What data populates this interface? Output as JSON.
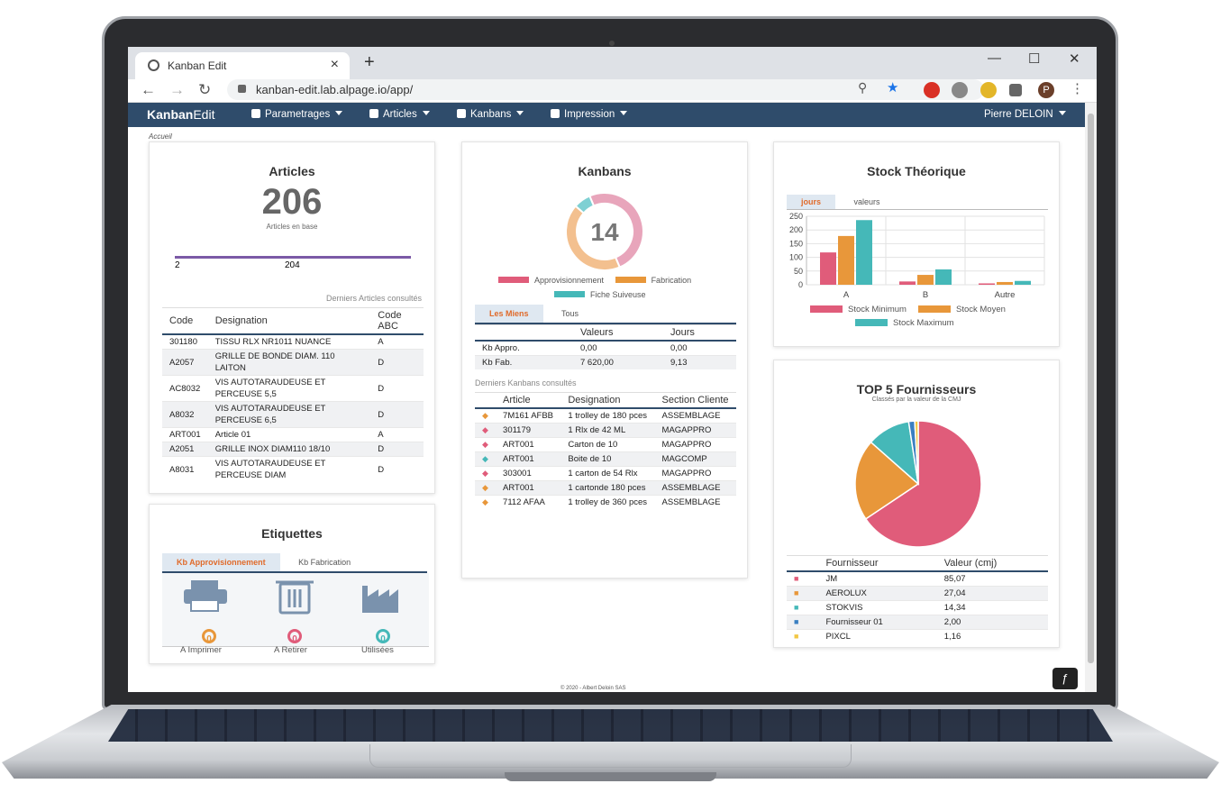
{
  "browser": {
    "tab_title": "Kanban Edit",
    "new_tab": "+",
    "url": "kanban-edit.lab.alpage.io/app/",
    "window_controls": [
      "—",
      "☐",
      "✕"
    ],
    "profile_initial": "P"
  },
  "appnav": {
    "brand_bold": "Kanban",
    "brand_light": "Edit",
    "menus": [
      "Parametrages",
      "Articles",
      "Kanbans",
      "Impression"
    ],
    "user": "Pierre DELOIN"
  },
  "breadcrumb": "Accueil",
  "articles": {
    "title": "Articles",
    "count": "206",
    "subtitle": "Articles en base",
    "progress_left": "2",
    "progress_right": "204",
    "recent_caption": "Derniers Articles consultés",
    "columns": [
      "Code",
      "Designation",
      "Code ABC"
    ],
    "rows": [
      [
        "301180",
        "TISSU RLX NR1011 NUANCE",
        "A"
      ],
      [
        "A2057",
        "GRILLE DE BONDE DIAM. 110 LAITON",
        "D"
      ],
      [
        "AC8032",
        "VIS AUTOTARAUDEUSE ET PERCEUSE 5,5",
        "D"
      ],
      [
        "A8032",
        "VIS AUTOTARAUDEUSE ET PERCEUSE 6,5",
        "D"
      ],
      [
        "ART001",
        "Article 01",
        "A"
      ],
      [
        "A2051",
        "GRILLE INOX DIAM110 18/10",
        "D"
      ],
      [
        "A8031",
        "VIS AUTOTARAUDEUSE ET PERCEUSE DIAM",
        "D"
      ]
    ]
  },
  "etiquettes": {
    "title": "Etiquettes",
    "tabs": [
      "Kb Approvisionnement",
      "Kb Fabrication"
    ],
    "items": [
      {
        "label": "A Imprimer",
        "count": "0",
        "color": "#e8973a",
        "icon": "printer-icon"
      },
      {
        "label": "A Retirer",
        "count": "0",
        "color": "#e05c7a",
        "icon": "trash-icon"
      },
      {
        "label": "Utilisées",
        "count": "0",
        "color": "#45b8b8",
        "icon": "factory-icon"
      }
    ]
  },
  "kanbans": {
    "title": "Kanbans",
    "center": "14",
    "legend": [
      "Approvisionnement",
      "Fabrication",
      "Fiche Suiveuse"
    ],
    "tabs": [
      "Les Miens",
      "Tous"
    ],
    "summary_columns": [
      "",
      "Valeurs",
      "Jours"
    ],
    "summary_rows": [
      [
        "Kb Appro.",
        "0,00",
        "0,00"
      ],
      [
        "Kb Fab.",
        "7 620,00",
        "9,13"
      ]
    ],
    "recent_caption": "Derniers Kanbans consultés",
    "columns": [
      "",
      "Article",
      "Designation",
      "Section Cliente"
    ],
    "rows": [
      {
        "color": "#e8973a",
        "cells": [
          "7M161 AFBB",
          "1 trolley de 180 pces",
          "ASSEMBLAGE"
        ]
      },
      {
        "color": "#e05c7a",
        "cells": [
          "301179",
          "1 Rlx de 42 ML",
          "MAGAPPRO"
        ]
      },
      {
        "color": "#e05c7a",
        "cells": [
          "ART001",
          "Carton de 10",
          "MAGAPPRO"
        ]
      },
      {
        "color": "#45b8b8",
        "cells": [
          "ART001",
          "Boite de 10",
          "MAGCOMP"
        ]
      },
      {
        "color": "#e05c7a",
        "cells": [
          "303001",
          "1 carton de 54 Rlx",
          "MAGAPPRO"
        ]
      },
      {
        "color": "#e8973a",
        "cells": [
          "ART001",
          "1 cartonde 180 pces",
          "ASSEMBLAGE"
        ]
      },
      {
        "color": "#e8973a",
        "cells": [
          "7112 AFAA",
          "1 trolley de 360 pces",
          "ASSEMBLAGE"
        ]
      }
    ]
  },
  "stock": {
    "title": "Stock Théorique",
    "tabs": [
      "jours",
      "valeurs"
    ]
  },
  "fournisseurs": {
    "title": "TOP 5 Fournisseurs",
    "subtitle": "Classés par la valeur de la CMJ",
    "columns": [
      "",
      "Fournisseur",
      "Valeur (cmj)"
    ],
    "rows": [
      {
        "color": "#e05c7a",
        "cells": [
          "JM",
          "85,07"
        ]
      },
      {
        "color": "#e8973a",
        "cells": [
          "AEROLUX",
          "27,04"
        ]
      },
      {
        "color": "#45b8b8",
        "cells": [
          "STOKVIS",
          "14,34"
        ]
      },
      {
        "color": "#3a7fc1",
        "cells": [
          "Fournisseur 01",
          "2,00"
        ]
      },
      {
        "color": "#f2c744",
        "cells": [
          "PIXCL",
          "1,16"
        ]
      }
    ]
  },
  "footer": "© 2020 - Albert Deloin SAS",
  "chart_data": [
    {
      "type": "pie",
      "title": "Kanbans",
      "categories": [
        "Approvisionnement",
        "Fabrication",
        "Fiche Suiveuse"
      ],
      "values": [
        7,
        6,
        1
      ],
      "colors": [
        "#e8a5bb",
        "#f3c08f",
        "#7fd0d3"
      ],
      "legend_colors": [
        "#e05c7a",
        "#e8973a",
        "#45b8b8"
      ]
    },
    {
      "type": "bar",
      "title": "Stock Théorique",
      "categories": [
        "A",
        "B",
        "Autre"
      ],
      "series": [
        {
          "name": "Stock Minimum",
          "values": [
            118,
            12,
            5
          ],
          "color": "#e05c7a"
        },
        {
          "name": "Stock Moyen",
          "values": [
            178,
            36,
            10
          ],
          "color": "#e8973a"
        },
        {
          "name": "Stock Maximum",
          "values": [
            236,
            56,
            14
          ],
          "color": "#45b8b8"
        }
      ],
      "yticks": [
        0,
        50,
        100,
        150,
        200,
        250
      ],
      "ylim": [
        0,
        250
      ],
      "grid": true,
      "legend": "bottom"
    },
    {
      "type": "pie",
      "title": "TOP 5 Fournisseurs",
      "categories": [
        "JM",
        "AEROLUX",
        "STOKVIS",
        "Fournisseur 01",
        "PIXCL"
      ],
      "values": [
        85.07,
        27.04,
        14.34,
        2.0,
        1.16
      ],
      "colors": [
        "#e05c7a",
        "#e8973a",
        "#45b8b8",
        "#3a7fc1",
        "#f2c744"
      ]
    }
  ]
}
